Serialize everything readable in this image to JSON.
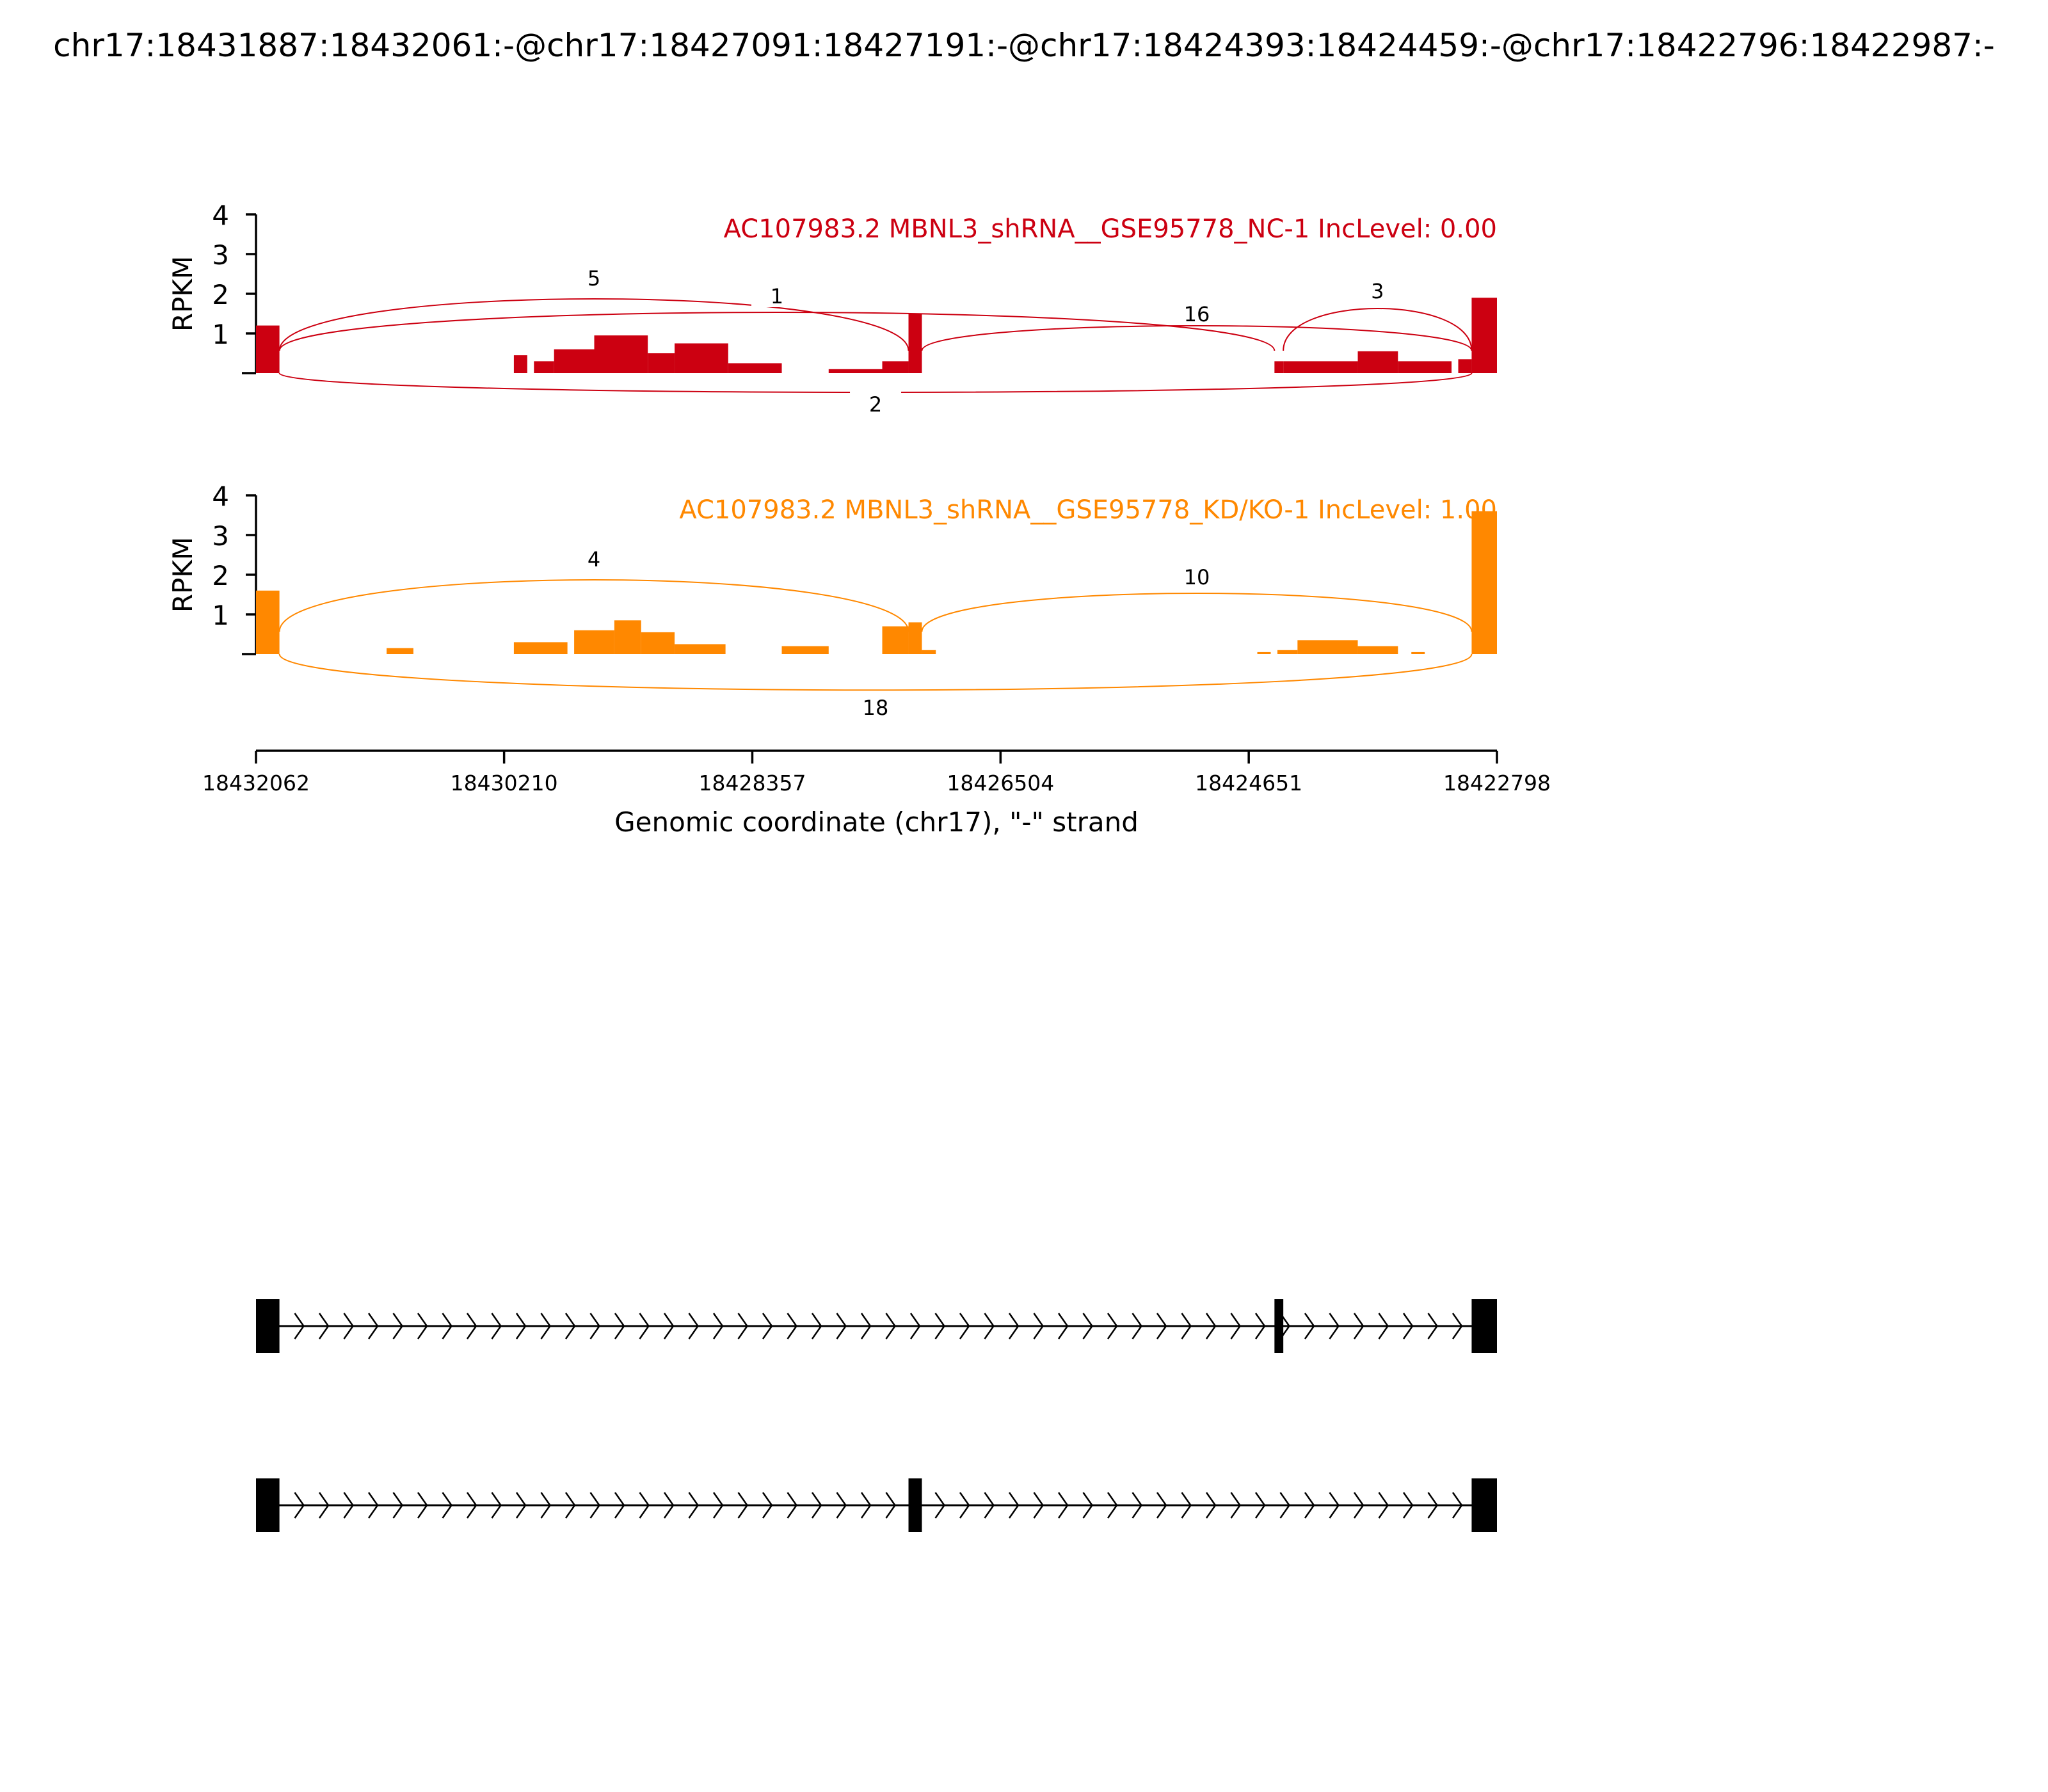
{
  "figure_title": "chr17:18431887:18432061:-@chr17:18427091:18427191:-@chr17:18424393:18424459:-@chr17:18422796:18422987:-",
  "chart_data": {
    "type": "area",
    "x_label": "Genomic coordinate (chr17), \"-\" strand",
    "x_ticks": [
      "18432062",
      "18430210",
      "18428357",
      "18426504",
      "18424651",
      "18422798"
    ],
    "x_range": [
      18432062,
      18422798
    ],
    "y_label": "RPKM",
    "y_ticks": [
      "1",
      "2",
      "3",
      "4"
    ],
    "y_range": [
      0,
      4
    ],
    "tracks": [
      {
        "title": "AC107983.2 MBNL3_shRNA__GSE95778_NC-1 IncLevel: 0.00",
        "color": "#cc0011",
        "coverage": [
          [
            18432062,
            18431887,
            1.2
          ],
          [
            18430137,
            18430037,
            0.45
          ],
          [
            18429987,
            18429837,
            0.3
          ],
          [
            18429837,
            18429537,
            0.6
          ],
          [
            18429537,
            18429137,
            0.95
          ],
          [
            18429137,
            18428937,
            0.5
          ],
          [
            18428937,
            18428537,
            0.75
          ],
          [
            18428537,
            18428137,
            0.25
          ],
          [
            18427787,
            18427387,
            0.1
          ],
          [
            18427387,
            18427191,
            0.3
          ],
          [
            18427191,
            18427091,
            1.5
          ],
          [
            18424459,
            18424393,
            0.3
          ],
          [
            18424393,
            18423837,
            0.3
          ],
          [
            18423837,
            18423537,
            0.55
          ],
          [
            18423537,
            18423137,
            0.3
          ],
          [
            18423087,
            18422987,
            0.35
          ],
          [
            18422987,
            18422798,
            1.9
          ]
        ],
        "junctions": [
          {
            "from": 18431887,
            "to": 18427191,
            "count": "5"
          },
          {
            "from": 18431887,
            "to": 18424459,
            "count": "1"
          },
          {
            "from": 18427091,
            "to": 18422987,
            "count": "16"
          },
          {
            "from": 18424393,
            "to": 18422987,
            "count": "3"
          },
          {
            "from": 18431887,
            "to": 18422987,
            "count": "2"
          }
        ]
      },
      {
        "title": "AC107983.2 MBNL3_shRNA__GSE95778_KD/KO-1 IncLevel: 1.00",
        "color": "#ff8800",
        "coverage": [
          [
            18432062,
            18431887,
            1.6
          ],
          [
            18431087,
            18430887,
            0.15
          ],
          [
            18430137,
            18429737,
            0.3
          ],
          [
            18429687,
            18429387,
            0.6
          ],
          [
            18429387,
            18429187,
            0.85
          ],
          [
            18429187,
            18428937,
            0.55
          ],
          [
            18428937,
            18428557,
            0.25
          ],
          [
            18428137,
            18427787,
            0.2
          ],
          [
            18427387,
            18427191,
            0.7
          ],
          [
            18427191,
            18427091,
            0.8
          ],
          [
            18427091,
            18426987,
            0.1
          ],
          [
            18424587,
            18424487,
            0.05
          ],
          [
            18424437,
            18424287,
            0.1
          ],
          [
            18424287,
            18423837,
            0.35
          ],
          [
            18423837,
            18423537,
            0.2
          ],
          [
            18423437,
            18423337,
            0.05
          ],
          [
            18422987,
            18422798,
            3.6
          ]
        ],
        "junctions": [
          {
            "from": 18431887,
            "to": 18427191,
            "count": "4"
          },
          {
            "from": 18427091,
            "to": 18422987,
            "count": "10"
          },
          {
            "from": 18431887,
            "to": 18422987,
            "count": "18"
          }
        ]
      }
    ],
    "isoforms": [
      {
        "exons": [
          [
            18432062,
            18431887
          ],
          [
            18424459,
            18424393
          ],
          [
            18422987,
            18422798
          ]
        ]
      },
      {
        "exons": [
          [
            18432062,
            18431887
          ],
          [
            18427191,
            18427091
          ],
          [
            18422987,
            18422798
          ]
        ]
      }
    ]
  }
}
